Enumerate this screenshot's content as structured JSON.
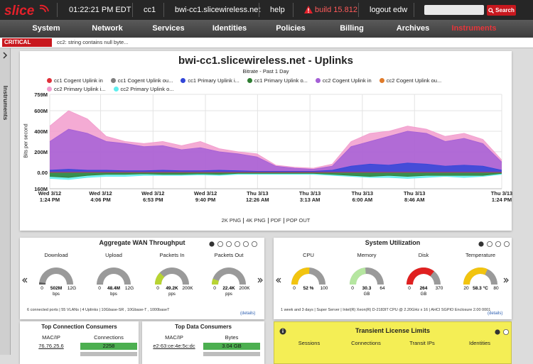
{
  "header": {
    "logo": "slice",
    "time": "01:22:21 PM EDT",
    "node": "cc1",
    "host": "bwi-cc1.slicewireless.net",
    "help": "help",
    "build": "build 15.812",
    "logout": "logout edw",
    "search": "Search"
  },
  "nav": [
    "System",
    "Network",
    "Services",
    "Identities",
    "Policies",
    "Billing",
    "Archives",
    "Instruments"
  ],
  "alert": {
    "level": "CRITICAL",
    "message": "cc2: string contains null byte..."
  },
  "sidebar": "Instruments",
  "chart_data": {
    "type": "area",
    "title": "bwi-cc1.slicewireless.net - Uplinks",
    "subtitle": "Bitrate - Past 1 Day",
    "ylabel": "Bits per second",
    "x": [
      0,
      1,
      2,
      3,
      4,
      5,
      6,
      7,
      8,
      9,
      10,
      11,
      12,
      13,
      14,
      15,
      16,
      17,
      18,
      19,
      20,
      21,
      22,
      23,
      24
    ],
    "xlim": [
      0,
      24
    ],
    "xticks": [
      {
        "value": 0,
        "label": "Wed 3/12\n1:24 PM"
      },
      {
        "value": 2.7,
        "label": "Wed 3/12\n4:06 PM"
      },
      {
        "value": 5.483,
        "label": "Wed 3/12\n6:53 PM"
      },
      {
        "value": 8.267,
        "label": "Wed 3/12\n9:40 PM"
      },
      {
        "value": 11.033,
        "label": "Thu 3/13\n12:26 AM"
      },
      {
        "value": 13.817,
        "label": "Thu 3/13\n3:13 AM"
      },
      {
        "value": 16.6,
        "label": "Thu 3/13\n6:00 AM"
      },
      {
        "value": 19.367,
        "label": "Thu 3/13\n8:46 AM"
      },
      {
        "value": 24,
        "label": "Thu 3/13\n1:24 PM"
      }
    ],
    "ylim": [
      -160000000,
      759000000
    ],
    "yticks": [
      {
        "value": 759000000,
        "label": "759M"
      },
      {
        "value": 600000000,
        "label": "600M"
      },
      {
        "value": 400000000,
        "label": "400M"
      },
      {
        "value": 200000000,
        "label": "200M"
      },
      {
        "value": 0,
        "label": "0.00"
      },
      {
        "value": -160000000,
        "label": "160M"
      }
    ],
    "grid": true,
    "series": [
      {
        "name": "cc1 Cogent Uplink in",
        "color": "#e0303a",
        "values": [
          0,
          0,
          0,
          0,
          0,
          0,
          0,
          0,
          0,
          0,
          0,
          0,
          0,
          0,
          0,
          0,
          0,
          0,
          0,
          0,
          0,
          0,
          0,
          0,
          0
        ]
      },
      {
        "name": "cc1 Cogent Uplink ou...",
        "color": "#7f7f7f",
        "values": [
          0,
          0,
          0,
          0,
          0,
          0,
          0,
          0,
          0,
          0,
          0,
          0,
          0,
          0,
          0,
          0,
          0,
          0,
          0,
          0,
          0,
          0,
          0,
          0,
          0
        ]
      },
      {
        "name": "cc1 Primary Uplink i...",
        "color": "#3246d8",
        "values": [
          20000000,
          30000000,
          20000000,
          20000000,
          15000000,
          15000000,
          20000000,
          15000000,
          15000000,
          20000000,
          15000000,
          10000000,
          10000000,
          10000000,
          10000000,
          20000000,
          60000000,
          80000000,
          70000000,
          90000000,
          80000000,
          60000000,
          70000000,
          60000000,
          20000000
        ]
      },
      {
        "name": "cc1 Primary Uplink o...",
        "color": "#2e7d32",
        "values": [
          -40000000,
          -50000000,
          -30000000,
          -20000000,
          -20000000,
          -15000000,
          -20000000,
          -20000000,
          -15000000,
          -20000000,
          -10000000,
          -10000000,
          -10000000,
          -10000000,
          -10000000,
          -20000000,
          -30000000,
          -40000000,
          -30000000,
          -40000000,
          -30000000,
          -30000000,
          -30000000,
          -30000000,
          -10000000
        ]
      },
      {
        "name": "cc2 Cogent Uplink in",
        "color": "#a45fd6",
        "values": [
          300000000,
          420000000,
          380000000,
          300000000,
          280000000,
          250000000,
          260000000,
          220000000,
          240000000,
          200000000,
          180000000,
          150000000,
          60000000,
          40000000,
          30000000,
          60000000,
          250000000,
          300000000,
          350000000,
          400000000,
          380000000,
          300000000,
          330000000,
          280000000,
          100000000
        ]
      },
      {
        "name": "cc2 Cogent Uplink ou...",
        "color": "#e07b2a",
        "values": [
          0,
          0,
          0,
          0,
          0,
          0,
          0,
          0,
          0,
          0,
          0,
          0,
          0,
          0,
          0,
          0,
          0,
          0,
          0,
          0,
          0,
          0,
          0,
          0,
          0
        ]
      },
      {
        "name": "cc2 Primary Uplink i...",
        "color": "#f29ccd",
        "values": [
          450000000,
          600000000,
          520000000,
          350000000,
          300000000,
          280000000,
          300000000,
          260000000,
          300000000,
          230000000,
          200000000,
          180000000,
          70000000,
          50000000,
          40000000,
          80000000,
          300000000,
          380000000,
          400000000,
          450000000,
          420000000,
          350000000,
          380000000,
          320000000,
          120000000
        ]
      },
      {
        "name": "cc2 Primary Uplink o...",
        "color": "#5eeeee",
        "values": [
          -60000000,
          -70000000,
          -50000000,
          -40000000,
          -40000000,
          -30000000,
          -30000000,
          -30000000,
          -25000000,
          -30000000,
          -20000000,
          -20000000,
          -20000000,
          -20000000,
          -20000000,
          -30000000,
          -40000000,
          -50000000,
          -50000000,
          -60000000,
          -50000000,
          -40000000,
          -50000000,
          -40000000,
          -20000000
        ]
      }
    ]
  },
  "chart_links": [
    "2K PNG",
    "4K PNG",
    "PDF",
    "POP OUT"
  ],
  "wan": {
    "title": "Aggregate WAN Throughput",
    "gauges": [
      {
        "label": "Download",
        "min": 0,
        "value": {
          "value": 502000000,
          "label": "502M"
        },
        "max": {
          "value": 12000000000,
          "label": "12G"
        },
        "unit": "bps",
        "color": "#5f5f5f"
      },
      {
        "label": "Upload",
        "min": 0,
        "value": {
          "value": 48400000,
          "label": "48.4M"
        },
        "max": {
          "value": 12000000000,
          "label": "12G"
        },
        "unit": "bps",
        "color": "#5f5f5f"
      },
      {
        "label": "Packets In",
        "min": 0,
        "value": {
          "value": 49200,
          "label": "49.2K"
        },
        "max": {
          "value": 200000,
          "label": "200K"
        },
        "unit": "pps",
        "color": "#b8d432"
      },
      {
        "label": "Packets Out",
        "min": 0,
        "value": {
          "value": 22400,
          "label": "22.4K"
        },
        "max": {
          "value": 200000,
          "label": "200K"
        },
        "unit": "pps",
        "color": "#b8d432"
      }
    ],
    "footer": "6 connected ports | 55 VLANs | 4 Uplinks | 10Gbase-SR , 10Gbase-T , 1000baseT",
    "details": "(details)"
  },
  "system": {
    "title": "System Utilization",
    "gauges": [
      {
        "label": "CPU",
        "min": 0,
        "value": {
          "value": 52,
          "label": "52 %"
        },
        "max": 100,
        "color": "#f2c40f"
      },
      {
        "label": "Memory",
        "min": 0,
        "value": 30.3,
        "max": 64,
        "unit": "GB",
        "color": "#b5e6a0"
      },
      {
        "label": "Disk",
        "min": 0,
        "value": 264,
        "max": 370,
        "unit": "GB",
        "color": "#e02020"
      },
      {
        "label": "Temperature",
        "min": 20,
        "value": {
          "value": 58.3,
          "label": "58.3 °C"
        },
        "max": 80,
        "color": "#f2c40f"
      }
    ],
    "footer": "1 week and 3 days | Super Server | Intel(R) Xeon(R) D-2183IT CPU @ 2.20GHz x 16 | AHCI SGPIO Enclosure 2.00 0001",
    "details": "(details)"
  },
  "connections": {
    "title": "Top Connection Consumers",
    "headers": [
      "MAC/IP",
      "Connections"
    ],
    "rows": [
      [
        "76.76.25.6",
        "2258"
      ]
    ]
  },
  "data_consumers": {
    "title": "Top Data Consumers",
    "headers": [
      "MAC/IP",
      "Bytes"
    ],
    "rows": [
      [
        "e2:63:ce:4e:5c:dc",
        "3.04 GB"
      ]
    ]
  },
  "license": {
    "title": "Transient License Limits",
    "columns": [
      "Sessions",
      "Connections",
      "Transit IPs",
      "Identities"
    ]
  }
}
